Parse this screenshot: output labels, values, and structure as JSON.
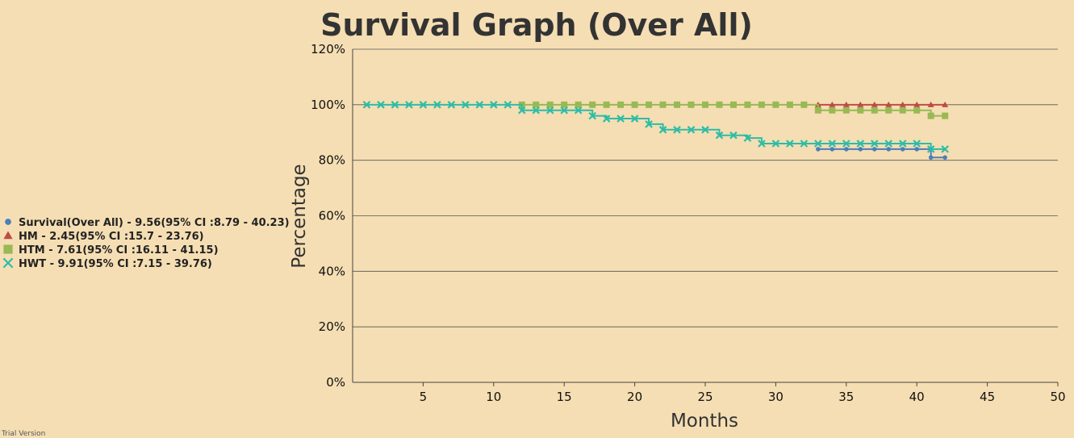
{
  "chart_data": {
    "type": "line",
    "title": "Survival Graph (Over All)",
    "xlabel": "Months",
    "ylabel": "Percentage",
    "xlim": [
      0,
      50
    ],
    "ylim": [
      0,
      120
    ],
    "x_ticks": [
      "5",
      "10",
      "15",
      "20",
      "25",
      "30",
      "35",
      "40",
      "45",
      "50"
    ],
    "y_ticks": [
      "0%",
      "20%",
      "40%",
      "60%",
      "80%",
      "100%",
      "120%"
    ],
    "grid": "horizontal",
    "legend_position": "left",
    "series": [
      {
        "name": "Survival(Over All) - 9.56(95% CI :8.79 - 40.23)",
        "marker": "circle",
        "color": "#4a7ebb",
        "points": [
          [
            33,
            84
          ],
          [
            34,
            84
          ],
          [
            35,
            84
          ],
          [
            36,
            84
          ],
          [
            37,
            84
          ],
          [
            38,
            84
          ],
          [
            39,
            84
          ],
          [
            40,
            84
          ],
          [
            41,
            81
          ],
          [
            42,
            81
          ]
        ]
      },
      {
        "name": "HM - 2.45(95% CI :15.7 - 23.76)",
        "marker": "triangle",
        "color": "#be4b48",
        "points": [
          [
            33,
            100
          ],
          [
            34,
            100
          ],
          [
            35,
            100
          ],
          [
            36,
            100
          ],
          [
            37,
            100
          ],
          [
            38,
            100
          ],
          [
            39,
            100
          ],
          [
            40,
            100
          ],
          [
            41,
            100
          ],
          [
            42,
            100
          ]
        ]
      },
      {
        "name": "HTM - 7.61(95% CI :16.11 - 41.15)",
        "marker": "square",
        "color": "#98b954",
        "points": [
          [
            12,
            100
          ],
          [
            13,
            100
          ],
          [
            14,
            100
          ],
          [
            15,
            100
          ],
          [
            16,
            100
          ],
          [
            17,
            100
          ],
          [
            18,
            100
          ],
          [
            19,
            100
          ],
          [
            20,
            100
          ],
          [
            21,
            100
          ],
          [
            22,
            100
          ],
          [
            23,
            100
          ],
          [
            24,
            100
          ],
          [
            25,
            100
          ],
          [
            26,
            100
          ],
          [
            27,
            100
          ],
          [
            28,
            100
          ],
          [
            29,
            100
          ],
          [
            30,
            100
          ],
          [
            31,
            100
          ],
          [
            32,
            100
          ],
          [
            33,
            98
          ],
          [
            34,
            98
          ],
          [
            35,
            98
          ],
          [
            36,
            98
          ],
          [
            37,
            98
          ],
          [
            38,
            98
          ],
          [
            39,
            98
          ],
          [
            40,
            98
          ],
          [
            41,
            96
          ],
          [
            42,
            96
          ]
        ]
      },
      {
        "name": "HWT - 9.91(95% CI :7.15 - 39.76)",
        "marker": "cross",
        "color": "#2ebca6",
        "points": [
          [
            1,
            100
          ],
          [
            2,
            100
          ],
          [
            3,
            100
          ],
          [
            4,
            100
          ],
          [
            5,
            100
          ],
          [
            6,
            100
          ],
          [
            7,
            100
          ],
          [
            8,
            100
          ],
          [
            9,
            100
          ],
          [
            10,
            100
          ],
          [
            11,
            100
          ],
          [
            12,
            98
          ],
          [
            13,
            98
          ],
          [
            14,
            98
          ],
          [
            15,
            98
          ],
          [
            16,
            98
          ],
          [
            17,
            96
          ],
          [
            18,
            95
          ],
          [
            19,
            95
          ],
          [
            20,
            95
          ],
          [
            21,
            93
          ],
          [
            22,
            91
          ],
          [
            23,
            91
          ],
          [
            24,
            91
          ],
          [
            25,
            91
          ],
          [
            26,
            89
          ],
          [
            27,
            89
          ],
          [
            28,
            88
          ],
          [
            29,
            86
          ],
          [
            30,
            86
          ],
          [
            31,
            86
          ],
          [
            32,
            86
          ],
          [
            33,
            86
          ],
          [
            34,
            86
          ],
          [
            35,
            86
          ],
          [
            36,
            86
          ],
          [
            37,
            86
          ],
          [
            38,
            86
          ],
          [
            39,
            86
          ],
          [
            40,
            86
          ],
          [
            41,
            84
          ],
          [
            42,
            84
          ]
        ]
      }
    ]
  },
  "footer": {
    "watermark": "Trial Version"
  }
}
